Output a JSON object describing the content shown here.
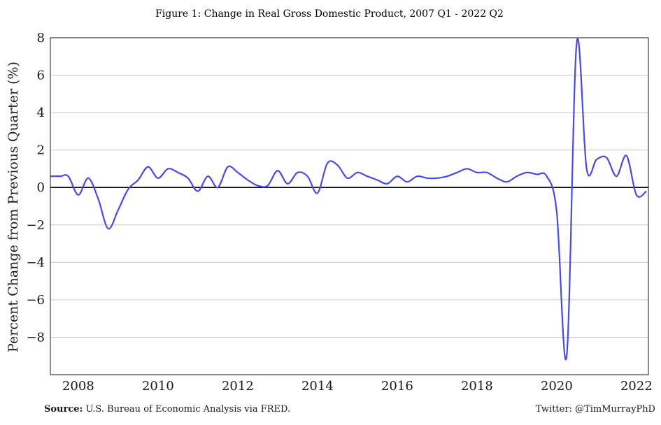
{
  "chart_data": {
    "type": "line",
    "title": "Figure 1: Change in Real Gross Domestic Product, 2007 Q1 - 2022 Q2",
    "xlabel": "",
    "ylabel": "Percent Change from Previous Quarter (%)",
    "xlim": [
      2007.3,
      2022.3
    ],
    "ylim": [
      -10,
      8
    ],
    "x_ticks": [
      2008,
      2010,
      2012,
      2014,
      2016,
      2018,
      2020,
      2022
    ],
    "y_ticks": [
      -8,
      -6,
      -4,
      -2,
      0,
      2,
      4,
      6,
      8
    ],
    "y_tick_labels": [
      "−8",
      "−6",
      "−4",
      "−2",
      "0",
      "2",
      "4",
      "6",
      "8"
    ],
    "grid": "horizontal",
    "zero_line": true,
    "line_color": "#4a4ae0",
    "x": [
      2007.3,
      2007.55,
      2007.75,
      2008.0,
      2008.25,
      2008.5,
      2008.75,
      2009.0,
      2009.25,
      2009.5,
      2009.75,
      2010.0,
      2010.25,
      2010.5,
      2010.75,
      2011.0,
      2011.25,
      2011.5,
      2011.75,
      2012.0,
      2012.25,
      2012.5,
      2012.75,
      2013.0,
      2013.25,
      2013.5,
      2013.75,
      2014.0,
      2014.25,
      2014.5,
      2014.75,
      2015.0,
      2015.25,
      2015.5,
      2015.75,
      2016.0,
      2016.25,
      2016.5,
      2016.75,
      2017.0,
      2017.25,
      2017.5,
      2017.75,
      2018.0,
      2018.25,
      2018.5,
      2018.75,
      2019.0,
      2019.25,
      2019.5,
      2019.75,
      2020.0,
      2020.25,
      2020.5,
      2020.75,
      2021.0,
      2021.25,
      2021.5,
      2021.75,
      2022.0,
      2022.25
    ],
    "y": [
      0.6,
      0.6,
      0.6,
      -0.4,
      0.5,
      -0.6,
      -2.2,
      -1.2,
      -0.1,
      0.4,
      1.1,
      0.5,
      1.0,
      0.8,
      0.5,
      -0.2,
      0.6,
      0.0,
      1.1,
      0.8,
      0.4,
      0.1,
      0.1,
      0.9,
      0.2,
      0.8,
      0.6,
      -0.3,
      1.3,
      1.2,
      0.5,
      0.8,
      0.6,
      0.4,
      0.2,
      0.6,
      0.3,
      0.6,
      0.5,
      0.5,
      0.6,
      0.8,
      1.0,
      0.8,
      0.8,
      0.5,
      0.3,
      0.6,
      0.8,
      0.7,
      0.6,
      -1.3,
      -9.0,
      7.7,
      1.0,
      1.5,
      1.6,
      0.6,
      1.7,
      -0.4,
      -0.2
    ],
    "source_label": "Source:",
    "source_text": "U.S. Bureau of Economic Analysis via FRED.",
    "credit": "Twitter: @TimMurrayPhD"
  }
}
